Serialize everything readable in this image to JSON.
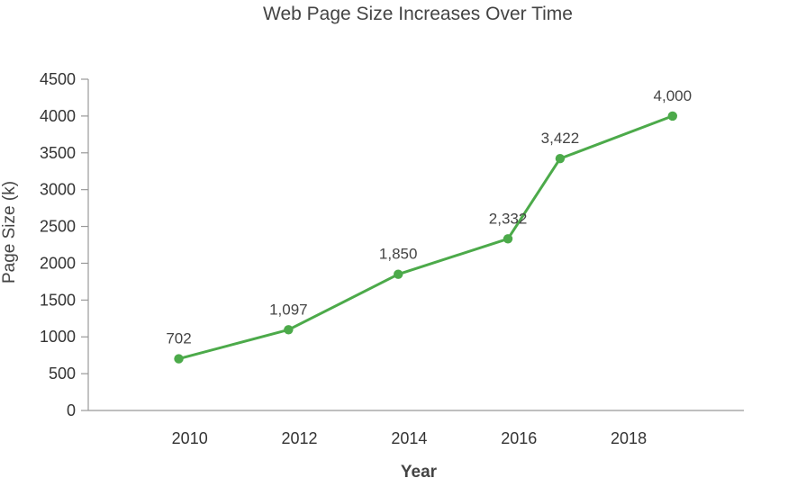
{
  "chart_data": {
    "type": "line",
    "title": "Web Page Size Increases Over Time",
    "xlabel": "Year",
    "ylabel": "Page Size (k)",
    "x_ticks": [
      "2010",
      "2012",
      "2014",
      "2016",
      "2018"
    ],
    "y_ticks": [
      "0",
      "500",
      "1000",
      "1500",
      "2000",
      "2500",
      "3000",
      "3500",
      "4000",
      "4500"
    ],
    "ylim": [
      0,
      4500
    ],
    "xlim": [
      2008.15,
      2020.1
    ],
    "grid": false,
    "legend": "none",
    "series": [
      {
        "x": [
          2009.8,
          2011.8,
          2013.8,
          2015.8,
          2016.75,
          2018.8
        ],
        "y": [
          702,
          1097,
          1850,
          2332,
          3422,
          4000
        ],
        "labels": [
          "702",
          "1,097",
          "1,850",
          "2,332",
          "3,422",
          "4,000"
        ],
        "color": "#4caa4a"
      }
    ]
  }
}
